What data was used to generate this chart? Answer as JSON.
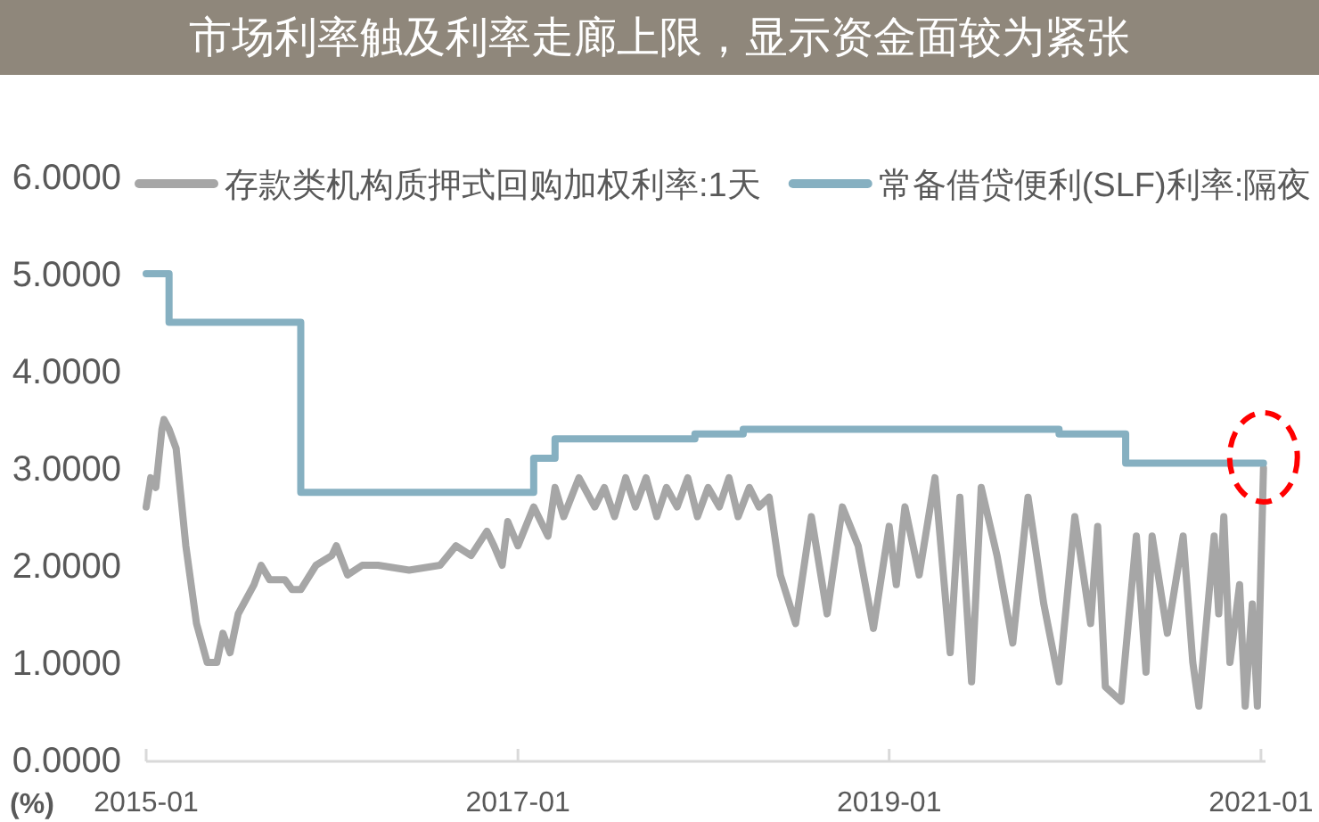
{
  "chart_data": {
    "type": "line",
    "title": "市场利率触及利率走廊上限，显示资金面较为紧张",
    "ylabel": "(%)",
    "legend": "top",
    "grid": false,
    "marker": "none",
    "line_style": "solid",
    "xlim": [
      "2015-01-01",
      "2021-01-10"
    ],
    "xticks": [
      "2015-01",
      "2017-01",
      "2019-01",
      "2021-01"
    ],
    "ylim": [
      0,
      6
    ],
    "yticks": [
      {
        "value": 0,
        "label": "0.0000"
      },
      {
        "value": 1,
        "label": "1.0000"
      },
      {
        "value": 2,
        "label": "2.0000"
      },
      {
        "value": 3,
        "label": "3.0000"
      },
      {
        "value": 4,
        "label": "4.0000"
      },
      {
        "value": 5,
        "label": "5.0000"
      },
      {
        "value": 6,
        "label": "6.0000"
      }
    ],
    "series": [
      {
        "name": "存款类机构质押式回购加权利率:1天",
        "color": "#a6a6a6",
        "type": "line",
        "x": [
          "2015-01-01",
          "2015-01-10",
          "2015-01-20",
          "2015-02-01",
          "2015-02-05",
          "2015-02-15",
          "2015-03-01",
          "2015-03-20",
          "2015-04-10",
          "2015-05-01",
          "2015-05-20",
          "2015-06-01",
          "2015-06-15",
          "2015-07-01",
          "2015-08-01",
          "2015-08-15",
          "2015-09-01",
          "2015-10-01",
          "2015-10-15",
          "2015-11-01",
          "2015-12-01",
          "2016-01-01",
          "2016-01-10",
          "2016-02-01",
          "2016-03-01",
          "2016-04-01",
          "2016-06-01",
          "2016-08-01",
          "2016-09-01",
          "2016-10-01",
          "2016-11-01",
          "2016-11-15",
          "2016-12-01",
          "2016-12-12",
          "2017-01-01",
          "2017-02-01",
          "2017-03-01",
          "2017-03-15",
          "2017-04-01",
          "2017-05-01",
          "2017-06-01",
          "2017-06-20",
          "2017-07-10",
          "2017-08-01",
          "2017-08-20",
          "2017-09-10",
          "2017-10-01",
          "2017-10-20",
          "2017-11-10",
          "2017-12-01",
          "2017-12-20",
          "2018-01-10",
          "2018-02-01",
          "2018-02-20",
          "2018-03-10",
          "2018-04-01",
          "2018-04-20",
          "2018-05-10",
          "2018-06-01",
          "2018-07-01",
          "2018-08-01",
          "2018-09-01",
          "2018-10-01",
          "2018-11-01",
          "2018-12-01",
          "2019-01-01",
          "2019-01-15",
          "2019-02-01",
          "2019-03-01",
          "2019-04-01",
          "2019-05-01",
          "2019-05-20",
          "2019-06-12",
          "2019-07-01",
          "2019-08-01",
          "2019-09-01",
          "2019-10-01",
          "2019-11-01",
          "2019-12-01",
          "2020-01-01",
          "2020-02-01",
          "2020-02-15",
          "2020-03-01",
          "2020-04-01",
          "2020-05-01",
          "2020-05-20",
          "2020-06-01",
          "2020-07-01",
          "2020-08-01",
          "2020-08-20",
          "2020-09-01",
          "2020-10-01",
          "2020-10-10",
          "2020-10-20",
          "2020-11-01",
          "2020-11-20",
          "2020-12-01",
          "2020-12-15",
          "2020-12-25",
          "2021-01-06"
        ],
        "values": [
          2.6,
          2.9,
          2.8,
          3.4,
          3.5,
          3.4,
          3.2,
          2.2,
          1.4,
          1.0,
          1.0,
          1.3,
          1.1,
          1.5,
          1.8,
          2.0,
          1.85,
          1.85,
          1.75,
          1.75,
          2.0,
          2.1,
          2.2,
          1.9,
          2.0,
          2.0,
          1.95,
          2.0,
          2.2,
          2.1,
          2.35,
          2.2,
          2.0,
          2.45,
          2.2,
          2.6,
          2.3,
          2.8,
          2.5,
          2.9,
          2.6,
          2.8,
          2.5,
          2.9,
          2.6,
          2.9,
          2.5,
          2.8,
          2.6,
          2.9,
          2.5,
          2.8,
          2.6,
          2.9,
          2.5,
          2.8,
          2.6,
          2.7,
          1.9,
          1.4,
          2.5,
          1.5,
          2.6,
          2.2,
          1.35,
          2.4,
          1.8,
          2.6,
          1.9,
          2.9,
          1.1,
          2.7,
          0.8,
          2.8,
          2.1,
          1.2,
          2.7,
          1.6,
          0.8,
          2.5,
          1.4,
          2.4,
          0.75,
          0.6,
          2.3,
          0.9,
          2.3,
          1.3,
          2.3,
          1.0,
          0.55,
          2.3,
          1.5,
          2.5,
          1.0,
          1.8,
          0.55,
          1.6,
          0.55,
          3.0
        ]
      },
      {
        "name": "常备借贷便利(SLF)利率:隔夜",
        "color": "#86b0c1",
        "type": "step",
        "x": [
          "2015-01-01",
          "2015-02-15",
          "2015-11-01",
          "2017-02-01",
          "2017-03-15",
          "2017-12-15",
          "2018-03-20",
          "2019-12-01",
          "2020-04-10",
          "2021-01-06"
        ],
        "values": [
          5.0,
          4.5,
          2.75,
          3.1,
          3.3,
          3.35,
          3.4,
          3.35,
          3.05,
          3.05
        ]
      }
    ]
  }
}
